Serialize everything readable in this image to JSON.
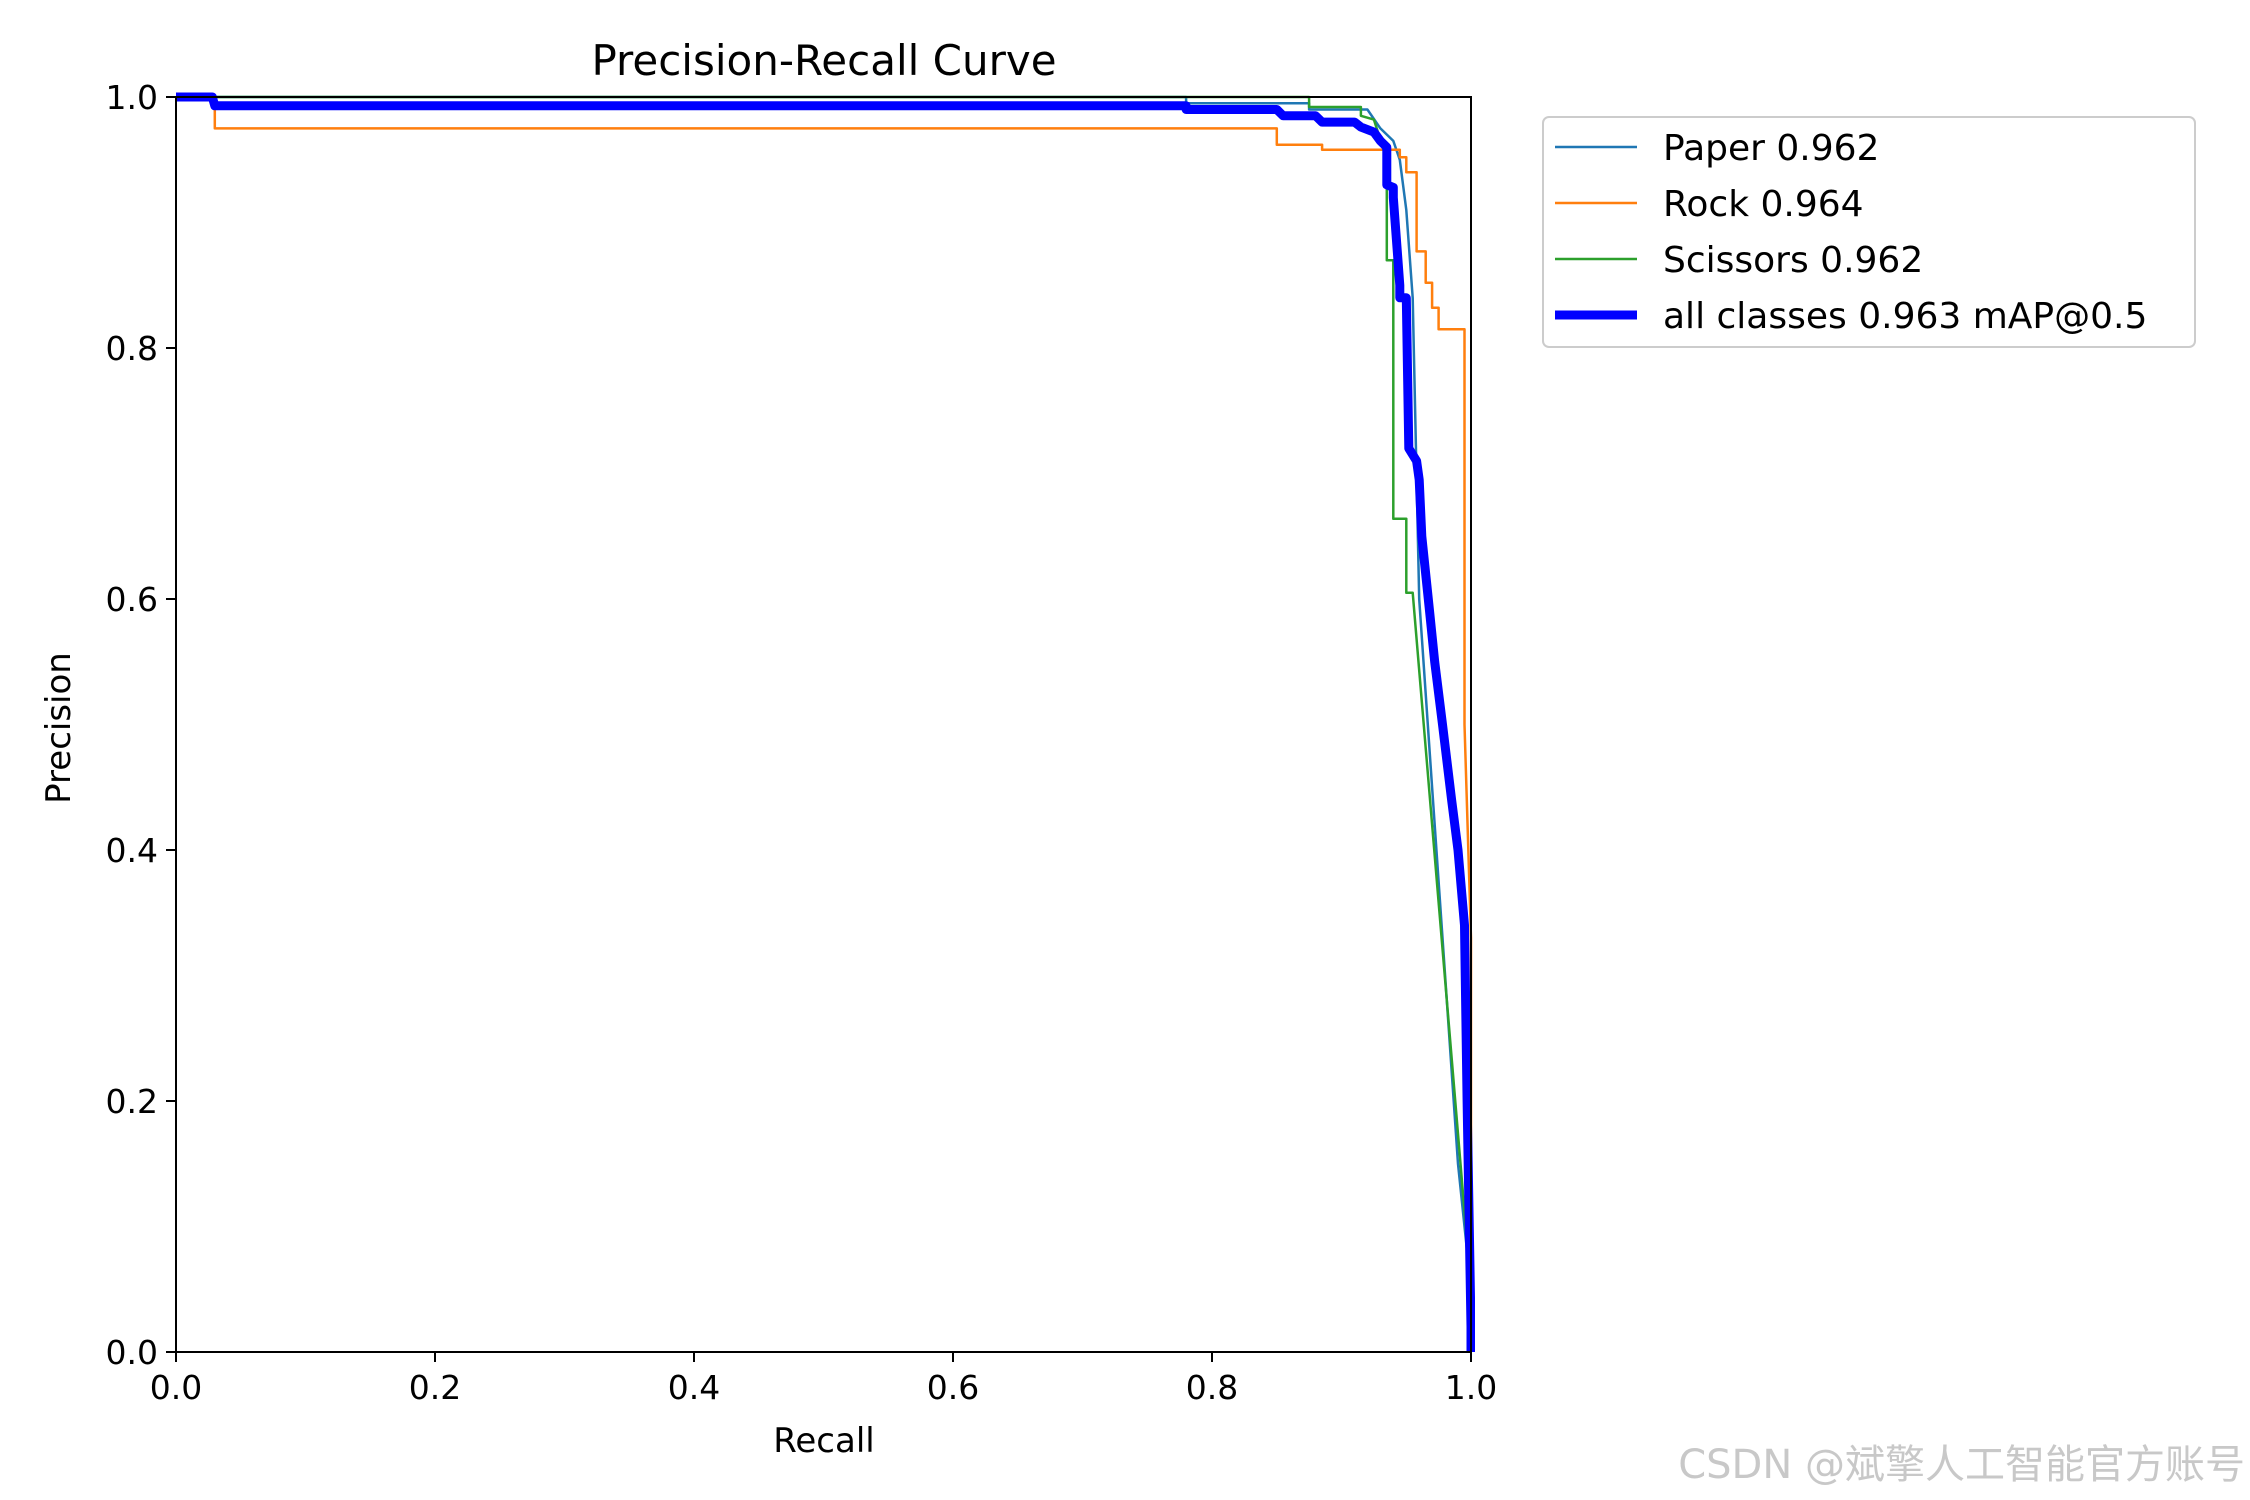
{
  "chart_data": {
    "type": "line",
    "title": "Precision-Recall Curve",
    "xlabel": "Recall",
    "ylabel": "Precision",
    "xlim": [
      0,
      1
    ],
    "ylim": [
      0,
      1
    ],
    "x_ticks": [
      "0.0",
      "0.2",
      "0.4",
      "0.6",
      "0.8",
      "1.0"
    ],
    "y_ticks": [
      "0.0",
      "0.2",
      "0.4",
      "0.6",
      "0.8",
      "1.0"
    ],
    "grid": false,
    "legend_position": "outside-right-top",
    "series": [
      {
        "name": "Paper 0.962",
        "color": "#1f77b4",
        "points": [
          [
            0,
            1
          ],
          [
            0.78,
            1
          ],
          [
            0.78,
            0.995
          ],
          [
            0.875,
            0.995
          ],
          [
            0.875,
            0.99
          ],
          [
            0.92,
            0.99
          ],
          [
            0.93,
            0.975
          ],
          [
            0.94,
            0.965
          ],
          [
            0.945,
            0.95
          ],
          [
            0.95,
            0.91
          ],
          [
            0.955,
            0.84
          ],
          [
            0.96,
            0.6
          ],
          [
            0.97,
            0.45
          ],
          [
            0.98,
            0.3
          ],
          [
            0.99,
            0.15
          ],
          [
            1.0,
            0.05
          ],
          [
            1.0,
            0
          ]
        ]
      },
      {
        "name": "Rock 0.964",
        "color": "#ff7f0e",
        "points": [
          [
            0,
            1
          ],
          [
            0.03,
            1
          ],
          [
            0.03,
            0.975
          ],
          [
            0.85,
            0.975
          ],
          [
            0.85,
            0.962
          ],
          [
            0.885,
            0.962
          ],
          [
            0.885,
            0.958
          ],
          [
            0.945,
            0.958
          ],
          [
            0.945,
            0.952
          ],
          [
            0.95,
            0.952
          ],
          [
            0.95,
            0.94
          ],
          [
            0.958,
            0.94
          ],
          [
            0.958,
            0.877
          ],
          [
            0.965,
            0.877
          ],
          [
            0.965,
            0.852
          ],
          [
            0.97,
            0.852
          ],
          [
            0.97,
            0.832
          ],
          [
            0.975,
            0.832
          ],
          [
            0.975,
            0.815
          ],
          [
            0.995,
            0.815
          ],
          [
            0.995,
            0.5
          ],
          [
            1.0,
            0.33
          ],
          [
            1.0,
            0
          ]
        ]
      },
      {
        "name": "Scissors 0.962",
        "color": "#2ca02c",
        "points": [
          [
            0,
            1
          ],
          [
            0.875,
            1
          ],
          [
            0.875,
            0.992
          ],
          [
            0.915,
            0.992
          ],
          [
            0.915,
            0.985
          ],
          [
            0.925,
            0.982
          ],
          [
            0.935,
            0.95
          ],
          [
            0.935,
            0.87
          ],
          [
            0.94,
            0.87
          ],
          [
            0.94,
            0.664
          ],
          [
            0.95,
            0.664
          ],
          [
            0.95,
            0.605
          ],
          [
            0.955,
            0.605
          ],
          [
            1.0,
            0.05
          ],
          [
            1.0,
            0
          ]
        ]
      },
      {
        "name": "all classes 0.963 mAP@0.5",
        "color": "#0000ff",
        "points": [
          [
            0,
            1
          ],
          [
            0.028,
            1
          ],
          [
            0.03,
            0.993
          ],
          [
            0.78,
            0.993
          ],
          [
            0.78,
            0.99
          ],
          [
            0.85,
            0.99
          ],
          [
            0.855,
            0.985
          ],
          [
            0.88,
            0.985
          ],
          [
            0.885,
            0.98
          ],
          [
            0.91,
            0.98
          ],
          [
            0.915,
            0.976
          ],
          [
            0.925,
            0.972
          ],
          [
            0.93,
            0.965
          ],
          [
            0.935,
            0.96
          ],
          [
            0.935,
            0.93
          ],
          [
            0.94,
            0.928
          ],
          [
            0.94,
            0.92
          ],
          [
            0.945,
            0.85
          ],
          [
            0.945,
            0.84
          ],
          [
            0.95,
            0.84
          ],
          [
            0.952,
            0.72
          ],
          [
            0.958,
            0.71
          ],
          [
            0.96,
            0.695
          ],
          [
            0.962,
            0.65
          ],
          [
            0.968,
            0.59
          ],
          [
            0.972,
            0.55
          ],
          [
            0.978,
            0.5
          ],
          [
            0.985,
            0.44
          ],
          [
            0.99,
            0.4
          ],
          [
            0.995,
            0.34
          ],
          [
            0.997,
            0.2
          ],
          [
            1.0,
            0.02
          ],
          [
            1.0,
            0
          ]
        ]
      }
    ]
  },
  "watermark": "CSDN @斌擎人工智能官方账号"
}
